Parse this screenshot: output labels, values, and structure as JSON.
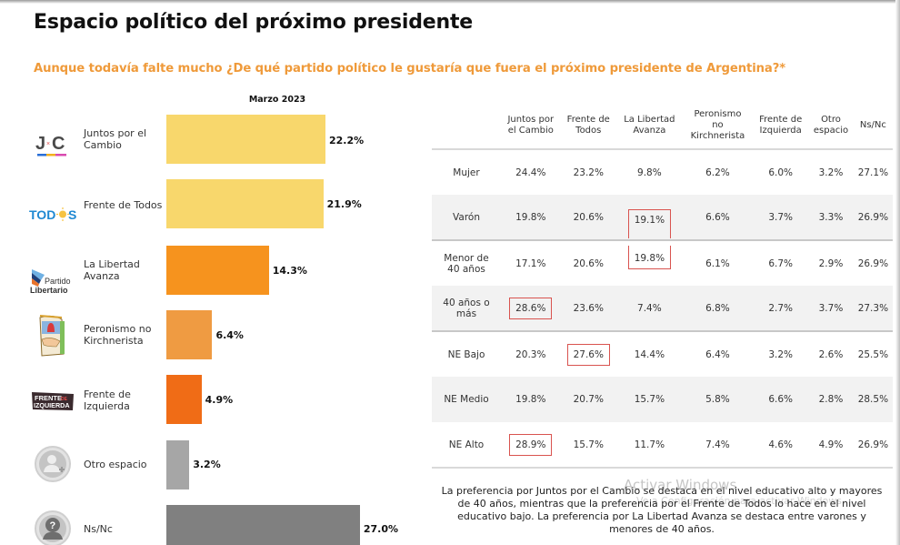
{
  "header": {
    "title": "Espacio político del próximo presidente",
    "question": "Aunque todavía falte mucho ¿De qué partido político le gustaría que fuera el próximo presidente de Argentina?*"
  },
  "chart_data": {
    "type": "bar",
    "orientation": "horizontal",
    "title": "Marzo 2023",
    "categories": [
      "Juntos por el Cambio",
      "Frente de Todos",
      "La Libertad Avanza",
      "Peronismo no Kirchnerista",
      "Frente de Izquierda",
      "Otro espacio",
      "Ns/Nc"
    ],
    "values": [
      22.2,
      21.9,
      14.3,
      6.4,
      4.9,
      3.2,
      27.0
    ],
    "value_labels": [
      "22.2%",
      "21.9%",
      "14.3%",
      "6.4%",
      "4.9%",
      "3.2%",
      "27.0%"
    ],
    "colors": [
      "#f8d76c",
      "#f8d76c",
      "#f6931e",
      "#ef9b42",
      "#f06c16",
      "#a6a6a6",
      "#808080"
    ],
    "logos": [
      "jxc-logo",
      "todos-logo",
      "partido-libertario-logo",
      "peronismo-logo",
      "frente-izquierda-logo",
      "user-add-icon",
      "question-person-icon"
    ],
    "xlim": [
      0,
      30
    ],
    "xlabel": "",
    "ylabel": "",
    "grid": false
  },
  "crosstab": {
    "columns": [
      "Juntos por el Cambio",
      "Frente de Todos",
      "La Libertad Avanza",
      "Peronismo no Kirchnerista",
      "Frente de Izquierda",
      "Otro espacio",
      "Ns/Nc"
    ],
    "column_labels": [
      "Juntos por\nel Cambio",
      "Frente de\nTodos",
      "La Libertad\nAvanza",
      "Peronismo\nno\nKirchnerista",
      "Frente de\nIzquierda",
      "Otro\nespacio",
      "Ns/Nc"
    ],
    "rows": [
      {
        "label": "Mujer",
        "values": [
          "24.4%",
          "23.2%",
          "9.8%",
          "6.2%",
          "6.0%",
          "3.2%",
          "27.1%"
        ]
      },
      {
        "label": "Varón",
        "values": [
          "19.8%",
          "20.6%",
          "19.1%",
          "6.6%",
          "3.7%",
          "3.3%",
          "26.9%"
        ]
      },
      {
        "label": "Menor de 40 años",
        "values": [
          "17.1%",
          "20.6%",
          "19.8%",
          "6.1%",
          "6.7%",
          "2.9%",
          "26.9%"
        ]
      },
      {
        "label": "40 años o más",
        "values": [
          "28.6%",
          "23.6%",
          "7.4%",
          "6.8%",
          "2.7%",
          "3.7%",
          "27.3%"
        ]
      },
      {
        "label": "NE Bajo",
        "values": [
          "20.3%",
          "27.6%",
          "14.4%",
          "6.4%",
          "3.2%",
          "2.6%",
          "25.5%"
        ]
      },
      {
        "label": "NE Medio",
        "values": [
          "19.8%",
          "20.7%",
          "15.7%",
          "5.8%",
          "6.6%",
          "2.8%",
          "28.5%"
        ]
      },
      {
        "label": "NE Alto",
        "values": [
          "28.9%",
          "15.7%",
          "11.7%",
          "7.4%",
          "4.6%",
          "4.9%",
          "26.9%"
        ]
      }
    ],
    "highlighted_cells": [
      {
        "row": "Varón",
        "column": "La Libertad Avanza"
      },
      {
        "row": "Menor de 40 años",
        "column": "La Libertad Avanza"
      },
      {
        "row": "40 años o más",
        "column": "Juntos por el Cambio"
      },
      {
        "row": "NE Bajo",
        "column": "Frente de Todos"
      },
      {
        "row": "NE Alto",
        "column": "Juntos por el Cambio"
      }
    ],
    "highlight_color": "#d9534f"
  },
  "note": "La preferencia por Juntos por el Cambio se destaca en el nivel educativo alto y mayores de 40 años, mientras que la preferencia por el Frente de Todos lo hace en el nivel educativo bajo. La preferencia por La Libertad Avanza se destaca entre varones y menores de 40 años.",
  "watermark": {
    "line1": "Activar Windows",
    "line2": "Ve a Configuración para activar Windows."
  },
  "colors": {
    "accent": "#ef9a3a",
    "title": "#111111"
  }
}
